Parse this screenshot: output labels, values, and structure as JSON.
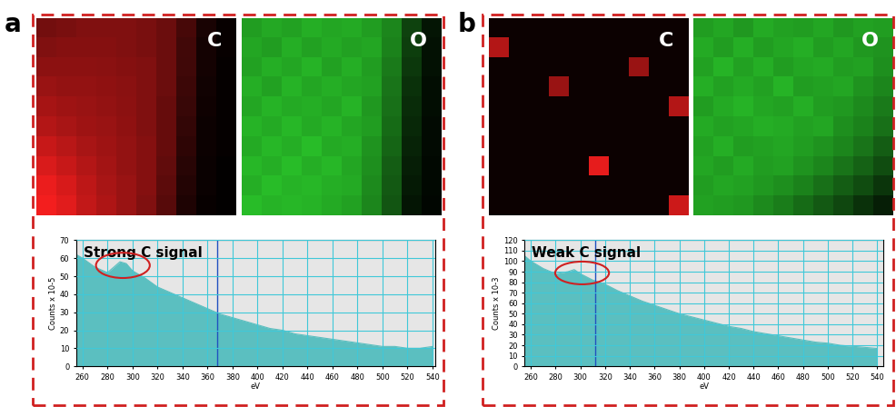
{
  "panel_labels": [
    "a",
    "b"
  ],
  "chart_data": [
    {
      "type": "heatmap",
      "title": "C",
      "color": "#ff2020",
      "color_range": [
        0,
        100
      ],
      "tick_labels": false,
      "cells": [
        [
          45,
          48,
          50,
          50,
          50,
          48,
          42,
          28,
          10,
          3
        ],
        [
          50,
          52,
          52,
          52,
          50,
          48,
          42,
          26,
          8,
          3
        ],
        [
          55,
          55,
          55,
          54,
          52,
          50,
          42,
          25,
          8,
          2
        ],
        [
          60,
          58,
          58,
          56,
          54,
          50,
          42,
          24,
          7,
          2
        ],
        [
          65,
          62,
          60,
          58,
          55,
          50,
          40,
          22,
          6,
          2
        ],
        [
          70,
          66,
          62,
          60,
          56,
          50,
          40,
          20,
          5,
          2
        ],
        [
          78,
          72,
          66,
          62,
          58,
          52,
          40,
          18,
          5,
          2
        ],
        [
          85,
          78,
          70,
          64,
          58,
          52,
          38,
          16,
          4,
          1
        ],
        [
          92,
          84,
          74,
          66,
          60,
          52,
          36,
          14,
          4,
          1
        ],
        [
          95,
          88,
          76,
          68,
          60,
          50,
          34,
          12,
          3,
          1
        ]
      ]
    },
    {
      "type": "heatmap",
      "title": "O",
      "color": "#30e030",
      "color_range": [
        0,
        100
      ],
      "tick_labels": false,
      "cells": [
        [
          70,
          75,
          72,
          78,
          74,
          76,
          70,
          60,
          30,
          10
        ],
        [
          74,
          70,
          78,
          72,
          76,
          72,
          74,
          58,
          28,
          8
        ],
        [
          72,
          78,
          74,
          80,
          72,
          78,
          70,
          55,
          25,
          8
        ],
        [
          78,
          72,
          80,
          74,
          78,
          74,
          72,
          52,
          22,
          6
        ],
        [
          74,
          80,
          76,
          78,
          74,
          80,
          68,
          50,
          20,
          6
        ],
        [
          80,
          76,
          82,
          76,
          80,
          74,
          70,
          48,
          18,
          5
        ],
        [
          76,
          82,
          78,
          84,
          76,
          78,
          66,
          45,
          16,
          5
        ],
        [
          82,
          78,
          84,
          78,
          82,
          74,
          64,
          42,
          14,
          4
        ],
        [
          78,
          84,
          80,
          82,
          78,
          76,
          62,
          40,
          12,
          4
        ],
        [
          84,
          80,
          82,
          80,
          76,
          72,
          60,
          38,
          10,
          3
        ]
      ]
    },
    {
      "type": "area",
      "annotation": "Strong C signal",
      "color": "#5bbfc0",
      "grid": true,
      "xlabel": "eV",
      "ylabel": "Counts x 10-5",
      "cursor": 368,
      "x": [
        255,
        260,
        270,
        280,
        285,
        290,
        295,
        300,
        310,
        320,
        330,
        340,
        350,
        360,
        370,
        380,
        390,
        400,
        410,
        420,
        430,
        440,
        450,
        460,
        470,
        480,
        490,
        500,
        510,
        520,
        530,
        540
      ],
      "values": [
        62,
        60,
        55,
        52,
        55,
        58,
        57,
        53,
        49,
        44,
        41,
        38,
        35,
        32,
        29,
        27,
        25,
        23,
        21,
        20,
        18,
        17,
        16,
        15,
        14,
        13,
        12,
        11,
        11,
        10,
        10,
        11
      ],
      "xlim": [
        255,
        542
      ],
      "xticks": [
        260,
        280,
        300,
        320,
        340,
        360,
        380,
        400,
        420,
        440,
        460,
        480,
        500,
        520,
        540
      ],
      "ylim": [
        0,
        70
      ],
      "yticks": [
        0,
        10,
        20,
        30,
        40,
        50,
        60,
        70
      ]
    },
    {
      "type": "heatmap",
      "title": "C",
      "color": "#ff2020",
      "color_range": [
        0,
        100
      ],
      "tick_labels": false,
      "cells": [
        [
          5,
          5,
          5,
          5,
          5,
          5,
          5,
          5,
          5,
          5
        ],
        [
          70,
          5,
          5,
          5,
          5,
          5,
          5,
          5,
          5,
          5
        ],
        [
          5,
          5,
          5,
          5,
          5,
          5,
          5,
          60,
          5,
          5
        ],
        [
          5,
          5,
          5,
          60,
          5,
          5,
          5,
          5,
          5,
          5
        ],
        [
          5,
          5,
          5,
          5,
          5,
          5,
          5,
          5,
          5,
          70
        ],
        [
          5,
          5,
          5,
          5,
          5,
          5,
          5,
          5,
          5,
          5
        ],
        [
          5,
          5,
          5,
          5,
          5,
          5,
          5,
          5,
          5,
          5
        ],
        [
          5,
          5,
          5,
          5,
          5,
          90,
          5,
          5,
          5,
          5
        ],
        [
          5,
          5,
          5,
          5,
          5,
          5,
          5,
          5,
          5,
          5
        ],
        [
          5,
          5,
          5,
          5,
          5,
          5,
          5,
          5,
          5,
          80
        ]
      ]
    },
    {
      "type": "heatmap",
      "title": "O",
      "color": "#30e030",
      "color_range": [
        0,
        100
      ],
      "tick_labels": false,
      "cells": [
        [
          70,
          74,
          68,
          76,
          72,
          70,
          74,
          68,
          72,
          70
        ],
        [
          76,
          70,
          78,
          70,
          74,
          78,
          70,
          74,
          68,
          66
        ],
        [
          72,
          80,
          72,
          78,
          70,
          74,
          76,
          70,
          72,
          64
        ],
        [
          78,
          72,
          76,
          72,
          80,
          70,
          72,
          74,
          66,
          60
        ],
        [
          70,
          76,
          80,
          74,
          72,
          78,
          70,
          68,
          62,
          55
        ],
        [
          76,
          72,
          74,
          78,
          76,
          72,
          74,
          64,
          58,
          50
        ],
        [
          72,
          78,
          70,
          72,
          74,
          70,
          66,
          60,
          52,
          42
        ],
        [
          74,
          70,
          76,
          70,
          72,
          66,
          60,
          52,
          44,
          34
        ],
        [
          70,
          74,
          72,
          68,
          64,
          58,
          50,
          42,
          34,
          24
        ],
        [
          72,
          70,
          68,
          62,
          56,
          48,
          40,
          32,
          22,
          14
        ]
      ]
    },
    {
      "type": "area",
      "annotation": "Weak C signal",
      "color": "#5bbfc0",
      "grid": true,
      "xlabel": "eV",
      "ylabel": "Counts x 10-3",
      "cursor": 312,
      "x": [
        255,
        260,
        270,
        280,
        290,
        295,
        300,
        310,
        320,
        330,
        340,
        350,
        360,
        370,
        380,
        390,
        400,
        410,
        420,
        430,
        440,
        450,
        460,
        470,
        480,
        490,
        500,
        510,
        520,
        530,
        540
      ],
      "values": [
        105,
        100,
        93,
        88,
        90,
        92,
        88,
        82,
        78,
        72,
        67,
        62,
        58,
        54,
        50,
        47,
        44,
        41,
        38,
        36,
        33,
        31,
        29,
        27,
        25,
        23,
        22,
        20,
        19,
        18,
        17
      ],
      "xlim": [
        255,
        545
      ],
      "xticks": [
        260,
        280,
        300,
        320,
        340,
        360,
        380,
        400,
        420,
        440,
        460,
        480,
        500,
        520,
        540
      ],
      "ylim": [
        0,
        120
      ],
      "yticks": [
        0,
        10,
        20,
        30,
        40,
        50,
        60,
        70,
        80,
        90,
        100,
        110,
        120
      ]
    }
  ]
}
